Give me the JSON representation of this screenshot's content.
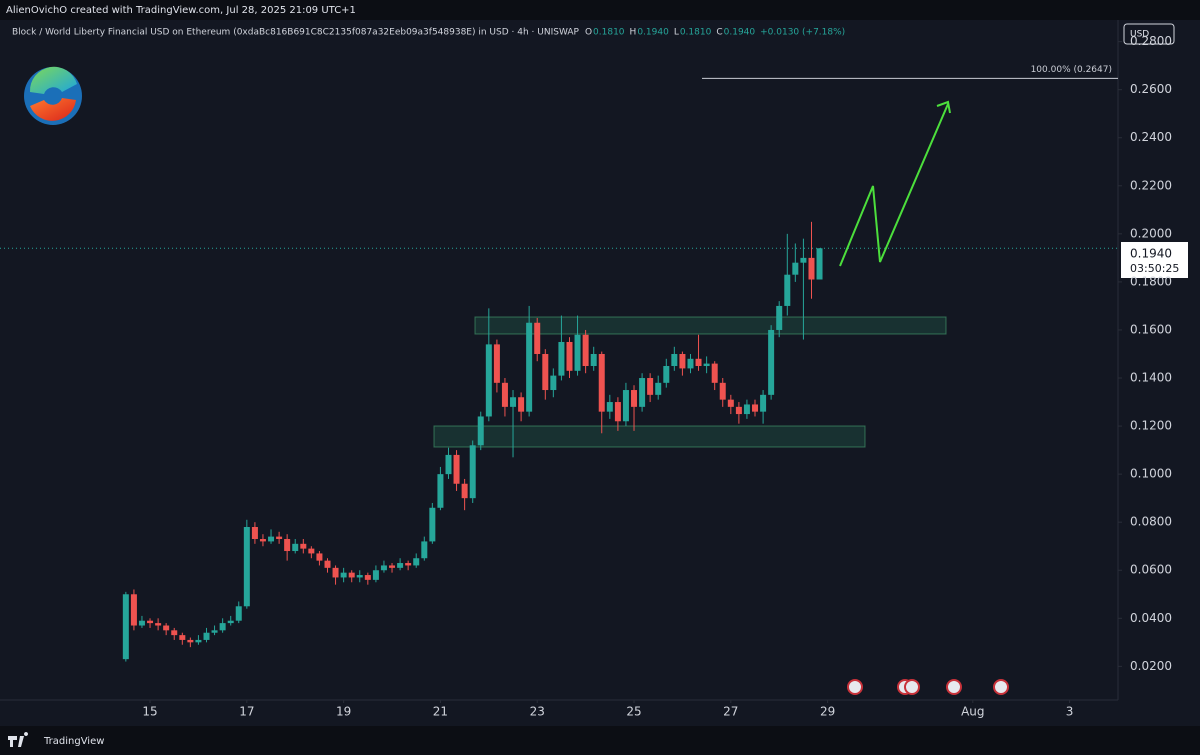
{
  "header": "AlienOvichO created with TradingView.com, Jul 28, 2025 21:09 UTC+1",
  "footer": "TradingView",
  "chart_data": {
    "type": "candlestick",
    "title": "Block / World Liberty Financial USD on Ethereum (0xdaBc816B691C8C2135f087a32Eeb09a3f548938E) in USD · 4h · UNISWAP",
    "readout": [
      {
        "key": "O",
        "text": "0.1810"
      },
      {
        "key": "H",
        "text": "0.1940"
      },
      {
        "key": "L",
        "text": "0.1810"
      },
      {
        "key": "C",
        "text": "0.1940"
      }
    ],
    "change": "+0.0130 (+7.18%)",
    "currency": "USD",
    "last_price_label": "0.1940",
    "countdown": "03:50:25",
    "fib_level": {
      "value": 0.2647,
      "label": "100.00% (0.2647)"
    },
    "up_color": "#26a69a",
    "down_color": "#ef5350",
    "grid": false,
    "x": [
      14.5,
      14.667,
      14.833,
      15,
      15.167,
      15.333,
      15.5,
      15.667,
      15.833,
      16,
      16.167,
      16.333,
      16.5,
      16.667,
      16.833,
      17,
      17.167,
      17.333,
      17.5,
      17.667,
      17.833,
      18,
      18.167,
      18.333,
      18.5,
      18.667,
      18.833,
      19,
      19.167,
      19.333,
      19.5,
      19.667,
      19.833,
      20,
      20.167,
      20.333,
      20.5,
      20.667,
      20.833,
      21,
      21.167,
      21.333,
      21.5,
      21.667,
      21.833,
      22,
      22.167,
      22.333,
      22.5,
      22.667,
      22.833,
      23,
      23.167,
      23.333,
      23.5,
      23.667,
      23.833,
      24,
      24.167,
      24.333,
      24.5,
      24.667,
      24.833,
      25,
      25.167,
      25.333,
      25.5,
      25.667,
      25.833,
      26,
      26.167,
      26.333,
      26.5,
      26.667,
      26.833,
      27,
      27.167,
      27.333,
      27.5,
      27.667,
      27.833,
      28,
      28.167,
      28.333,
      28.5,
      28.667,
      28.833
    ],
    "open": [
      0.023,
      0.05,
      0.037,
      0.039,
      0.038,
      0.037,
      0.035,
      0.033,
      0.031,
      0.03,
      0.031,
      0.034,
      0.035,
      0.038,
      0.039,
      0.045,
      0.078,
      0.073,
      0.072,
      0.074,
      0.073,
      0.068,
      0.071,
      0.069,
      0.067,
      0.064,
      0.061,
      0.057,
      0.059,
      0.057,
      0.058,
      0.056,
      0.06,
      0.062,
      0.061,
      0.063,
      0.062,
      0.065,
      0.072,
      0.086,
      0.1,
      0.108,
      0.096,
      0.09,
      0.112,
      0.124,
      0.154,
      0.138,
      0.128,
      0.132,
      0.126,
      0.163,
      0.15,
      0.135,
      0.141,
      0.155,
      0.143,
      0.158,
      0.145,
      0.15,
      0.126,
      0.13,
      0.122,
      0.135,
      0.128,
      0.14,
      0.133,
      0.138,
      0.145,
      0.15,
      0.144,
      0.148,
      0.145,
      0.146,
      0.138,
      0.131,
      0.128,
      0.125,
      0.129,
      0.126,
      0.133,
      0.16,
      0.17,
      0.183,
      0.188,
      0.19,
      0.181
    ],
    "high": [
      0.051,
      0.052,
      0.041,
      0.04,
      0.04,
      0.038,
      0.036,
      0.034,
      0.032,
      0.033,
      0.036,
      0.037,
      0.04,
      0.041,
      0.047,
      0.081,
      0.08,
      0.075,
      0.077,
      0.076,
      0.075,
      0.073,
      0.073,
      0.07,
      0.068,
      0.065,
      0.062,
      0.061,
      0.06,
      0.06,
      0.059,
      0.062,
      0.064,
      0.063,
      0.065,
      0.064,
      0.067,
      0.074,
      0.088,
      0.103,
      0.111,
      0.11,
      0.098,
      0.114,
      0.126,
      0.169,
      0.156,
      0.14,
      0.135,
      0.134,
      0.17,
      0.165,
      0.152,
      0.144,
      0.166,
      0.157,
      0.166,
      0.16,
      0.153,
      0.151,
      0.133,
      0.132,
      0.138,
      0.137,
      0.142,
      0.142,
      0.141,
      0.148,
      0.153,
      0.151,
      0.15,
      0.158,
      0.149,
      0.147,
      0.14,
      0.133,
      0.13,
      0.131,
      0.131,
      0.135,
      0.162,
      0.172,
      0.2,
      0.196,
      0.198,
      0.205,
      0.194
    ],
    "low": [
      0.022,
      0.035,
      0.036,
      0.036,
      0.035,
      0.033,
      0.031,
      0.029,
      0.028,
      0.029,
      0.03,
      0.033,
      0.034,
      0.037,
      0.038,
      0.044,
      0.071,
      0.07,
      0.071,
      0.071,
      0.064,
      0.067,
      0.067,
      0.065,
      0.062,
      0.059,
      0.054,
      0.055,
      0.055,
      0.055,
      0.054,
      0.055,
      0.059,
      0.059,
      0.06,
      0.06,
      0.061,
      0.064,
      0.071,
      0.085,
      0.098,
      0.093,
      0.085,
      0.088,
      0.11,
      0.122,
      0.134,
      0.124,
      0.107,
      0.122,
      0.124,
      0.147,
      0.131,
      0.132,
      0.139,
      0.14,
      0.141,
      0.142,
      0.143,
      0.117,
      0.123,
      0.118,
      0.12,
      0.118,
      0.126,
      0.13,
      0.131,
      0.136,
      0.143,
      0.141,
      0.142,
      0.143,
      0.142,
      0.135,
      0.128,
      0.125,
      0.121,
      0.123,
      0.124,
      0.121,
      0.131,
      0.157,
      0.166,
      0.18,
      0.156,
      0.173,
      0.181
    ],
    "close": [
      0.05,
      0.037,
      0.039,
      0.038,
      0.037,
      0.035,
      0.033,
      0.031,
      0.03,
      0.031,
      0.034,
      0.035,
      0.038,
      0.039,
      0.045,
      0.078,
      0.073,
      0.072,
      0.074,
      0.073,
      0.068,
      0.071,
      0.069,
      0.067,
      0.064,
      0.061,
      0.057,
      0.059,
      0.057,
      0.058,
      0.056,
      0.06,
      0.062,
      0.061,
      0.063,
      0.062,
      0.065,
      0.072,
      0.086,
      0.1,
      0.108,
      0.096,
      0.09,
      0.112,
      0.124,
      0.154,
      0.138,
      0.128,
      0.132,
      0.126,
      0.163,
      0.15,
      0.135,
      0.141,
      0.155,
      0.143,
      0.158,
      0.145,
      0.15,
      0.126,
      0.13,
      0.122,
      0.135,
      0.128,
      0.14,
      0.133,
      0.138,
      0.145,
      0.15,
      0.144,
      0.148,
      0.145,
      0.146,
      0.138,
      0.131,
      0.128,
      0.125,
      0.129,
      0.126,
      0.133,
      0.16,
      0.17,
      0.183,
      0.188,
      0.19,
      0.181,
      0.194
    ],
    "xlim": [
      11.9,
      35
    ],
    "xticks": [
      15,
      17,
      19,
      21,
      23,
      25,
      27,
      29,
      {
        "value": 32,
        "label": "Aug"
      },
      {
        "value": 34,
        "label": "3"
      }
    ],
    "ylim": [
      0.006,
      0.289
    ],
    "yticks": [
      {
        "value": 0.02,
        "label": "0.0200"
      },
      {
        "value": 0.04,
        "label": "0.0400"
      },
      {
        "value": 0.06,
        "label": "0.0600"
      },
      {
        "value": 0.08,
        "label": "0.0800"
      },
      {
        "value": 0.1,
        "label": "0.1000"
      },
      {
        "value": 0.12,
        "label": "0.1200"
      },
      {
        "value": 0.14,
        "label": "0.1400"
      },
      {
        "value": 0.16,
        "label": "0.1600"
      },
      {
        "value": 0.18,
        "label": "0.1800"
      },
      {
        "value": 0.2,
        "label": "0.2000"
      },
      {
        "value": 0.22,
        "label": "0.2200"
      },
      {
        "value": 0.24,
        "label": "0.2400"
      },
      {
        "value": 0.26,
        "label": "0.2600"
      },
      {
        "value": 0.28,
        "label": "0.2800"
      }
    ]
  }
}
